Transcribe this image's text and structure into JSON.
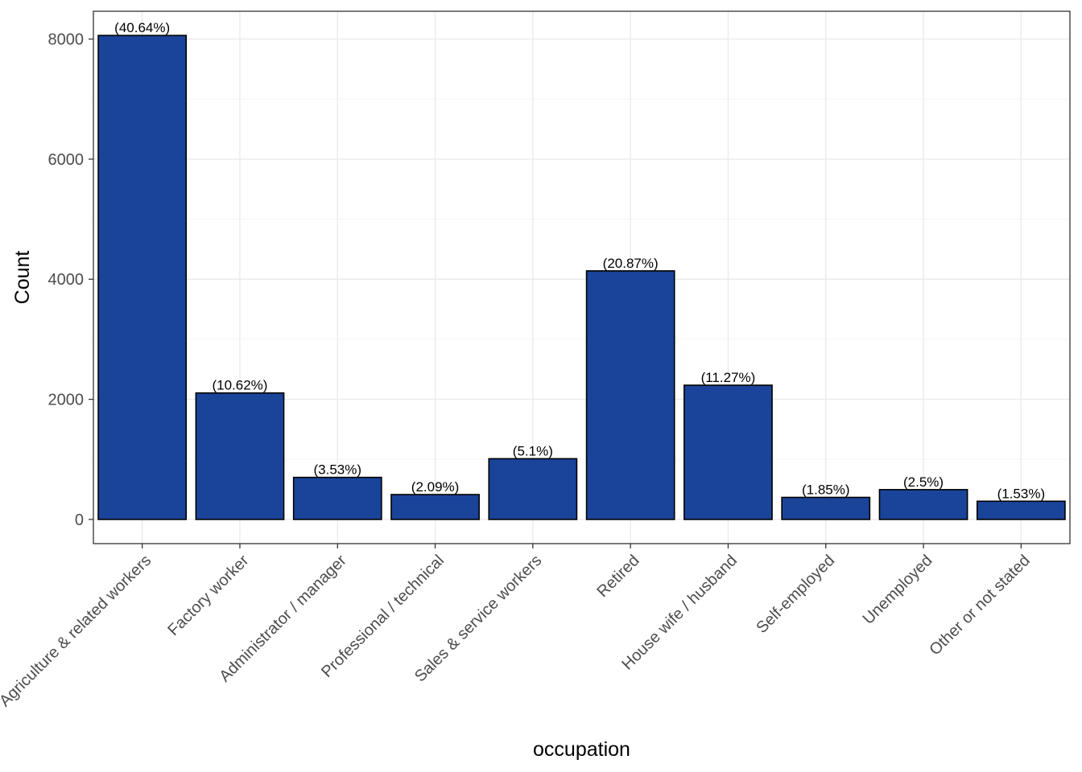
{
  "chart_data": {
    "type": "bar",
    "xlabel": "occupation",
    "ylabel": "Count",
    "categories": [
      "Agriculture & related workers",
      "Factory worker",
      "Administrator / manager",
      "Professional / technical",
      "Sales & service workers",
      "Retired",
      "House wife / husband",
      "Self-employed",
      "Unemployed",
      "Other or not stated"
    ],
    "values": [
      8060,
      2106,
      700,
      414,
      1011,
      4139,
      2235,
      367,
      496,
      303
    ],
    "data_labels": [
      "(40.64%)",
      "(10.62%)",
      "(3.53%)",
      "(2.09%)",
      "(5.1%)",
      "(20.87%)",
      "(11.27%)",
      "(1.85%)",
      "(2.5%)",
      "(1.53%)"
    ],
    "ylim": [
      -403,
      8463
    ],
    "yticks": [
      0,
      2000,
      4000,
      6000,
      8000
    ],
    "ytick_labels": [
      "0",
      "2000",
      "4000",
      "6000",
      "8000"
    ],
    "grid": true,
    "legend": "none",
    "colors": {
      "bar_fill": "#1a4499",
      "bar_stroke": "#000000",
      "grid_major": "#ebebeb",
      "grid_minor": "#f5f5f5",
      "panel_border": "#333333"
    }
  }
}
